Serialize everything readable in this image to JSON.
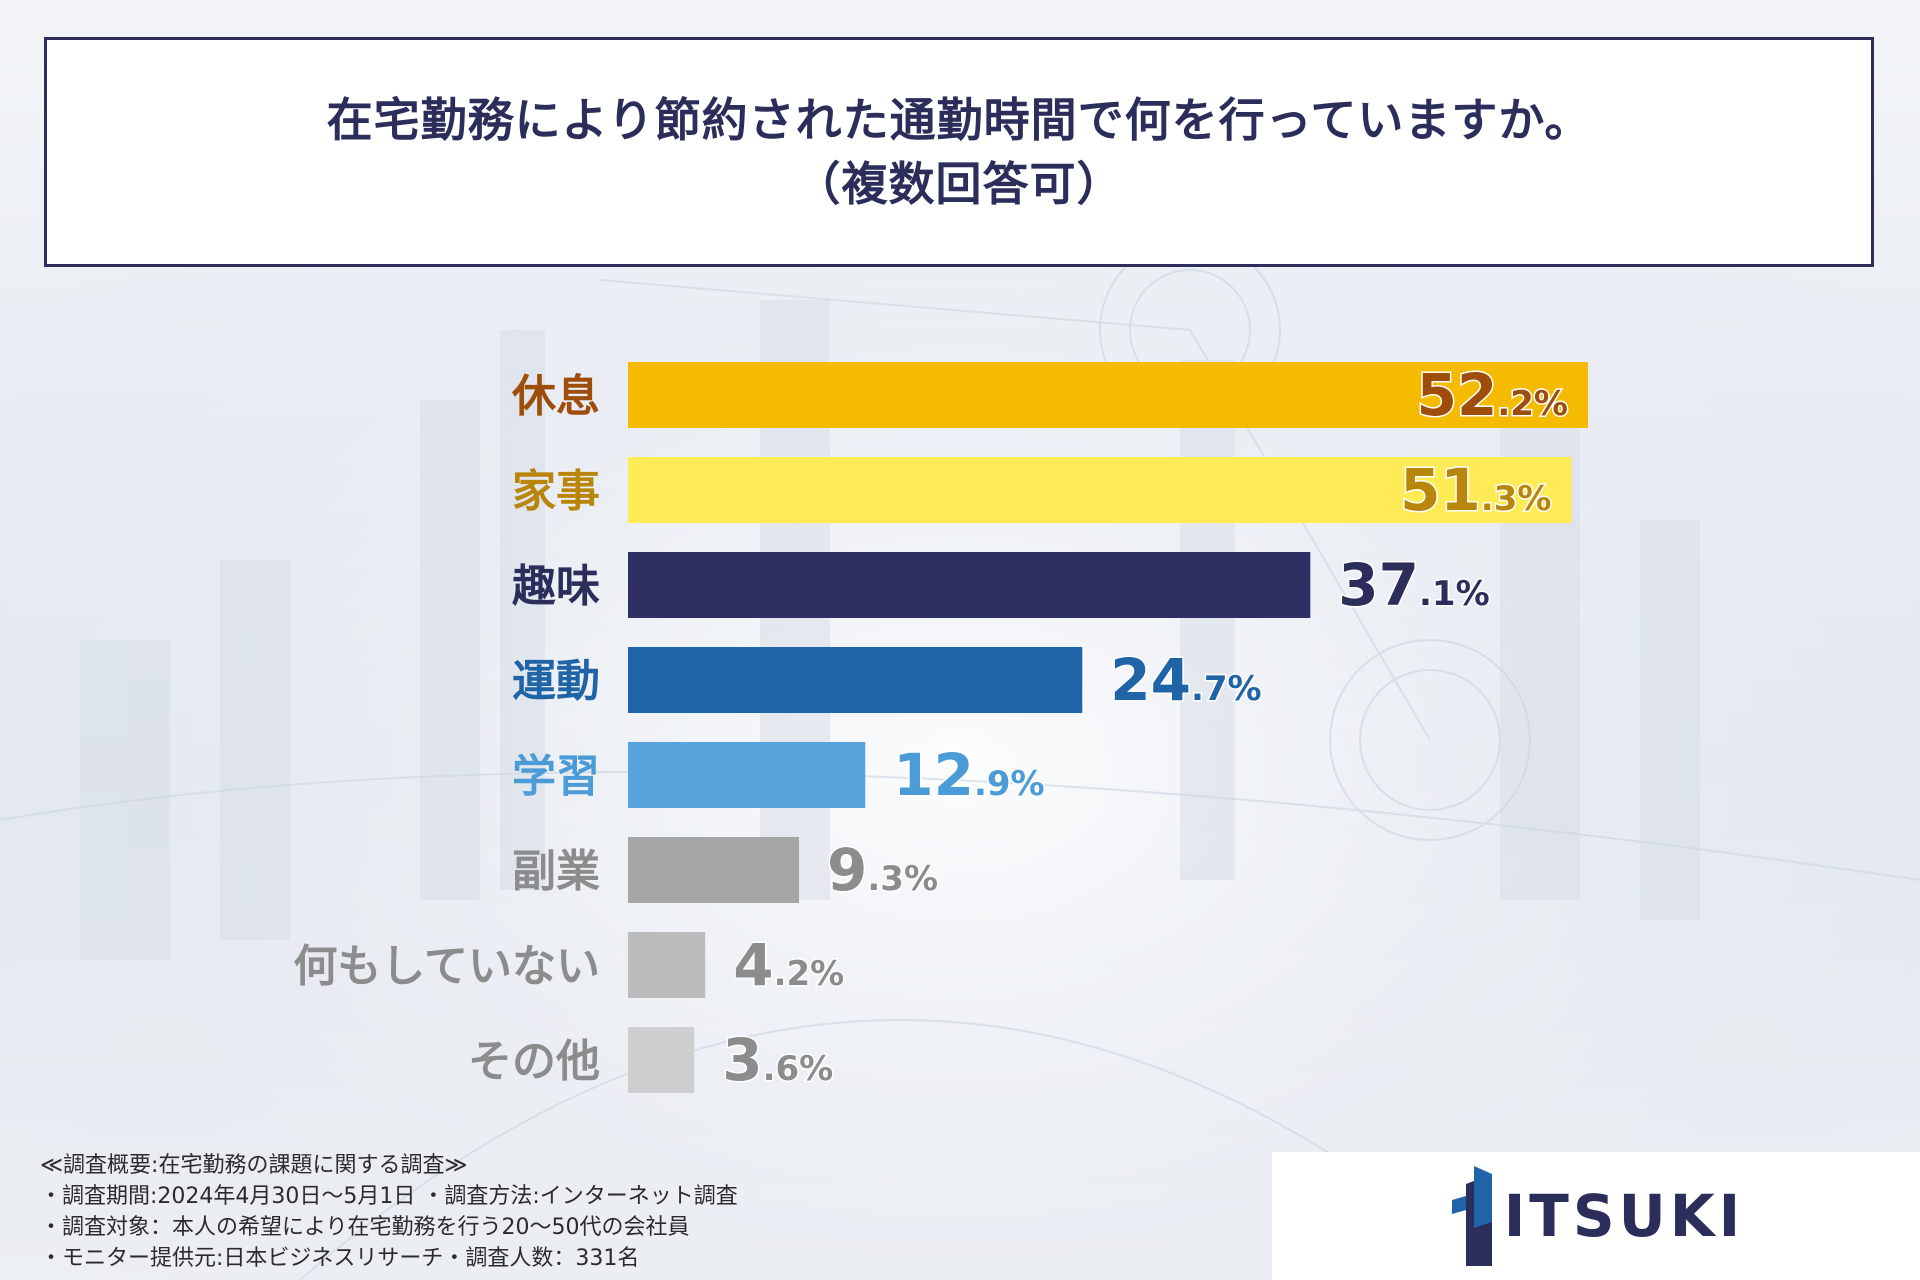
{
  "title": {
    "line1": "在宅勤務により節約された通勤時間で何を行っていますか。",
    "line2": "（複数回答可）"
  },
  "chart_data": {
    "type": "bar",
    "orientation": "horizontal",
    "title": "在宅勤務により節約された通勤時間で何を行っていますか。（複数回答可）",
    "unit": "%",
    "categories": [
      "休息",
      "家事",
      "趣味",
      "運動",
      "学習",
      "副業",
      "何もしていない",
      "その他"
    ],
    "values": [
      52.2,
      51.3,
      37.1,
      24.7,
      12.9,
      9.3,
      4.2,
      3.6
    ],
    "bar_colors": [
      "#f5bb00",
      "#ffeb55",
      "#2e2f62",
      "#1f64a6",
      "#58a3db",
      "#a6a6a6",
      "#bcbcbc",
      "#cfcfcf"
    ],
    "label_colors": [
      "#9e4d0b",
      "#b8860b",
      "#2b2d5a",
      "#1f64a6",
      "#4b9bd6",
      "#8c8c8c",
      "#8c8c8c",
      "#8c8c8c"
    ],
    "xlim": [
      0,
      60
    ]
  },
  "footnote": {
    "line1": "≪調査概要:在宅勤務の課題に関する調査≫",
    "line2": "・調査期間:2024年4月30日〜5月1日 ・調査方法:インターネット調査",
    "line3": "・調査対象：本人の希望により在宅勤務を行う20〜50代の会社員",
    "line4": "・モニター提供元:日本ビジネスリサーチ・調査人数：331名"
  },
  "logo": {
    "text": "ITSUKI",
    "colors": [
      "#2b2d5a",
      "#1f64a6"
    ]
  }
}
